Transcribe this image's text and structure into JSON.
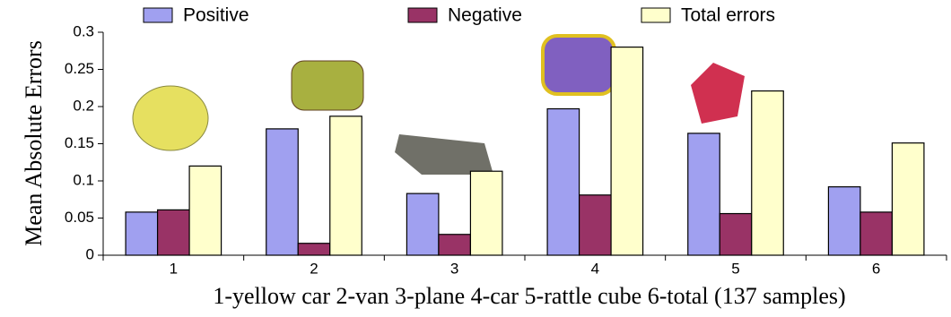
{
  "chart_data": {
    "type": "bar",
    "y_label": "Mean Absolute Errors",
    "x_label": "1-yellow car 2-van 3-plane 4-car 5-rattle cube 6-total (137 samples)",
    "categories": [
      "1",
      "2",
      "3",
      "4",
      "5",
      "6"
    ],
    "series": [
      {
        "name": "Positive",
        "color": "#a0a0f0",
        "values": [
          0.058,
          0.17,
          0.083,
          0.197,
          0.164,
          0.092
        ]
      },
      {
        "name": "Negative",
        "color": "#993366",
        "values": [
          0.061,
          0.016,
          0.028,
          0.081,
          0.056,
          0.058
        ]
      },
      {
        "name": "Total errors",
        "color": "#ffffcc",
        "values": [
          0.12,
          0.187,
          0.113,
          0.28,
          0.221,
          0.151
        ]
      }
    ],
    "ylim": [
      0,
      0.3
    ],
    "yticks": [
      0,
      0.05,
      0.1,
      0.15,
      0.2,
      0.25,
      0.3
    ],
    "legend": "top"
  }
}
